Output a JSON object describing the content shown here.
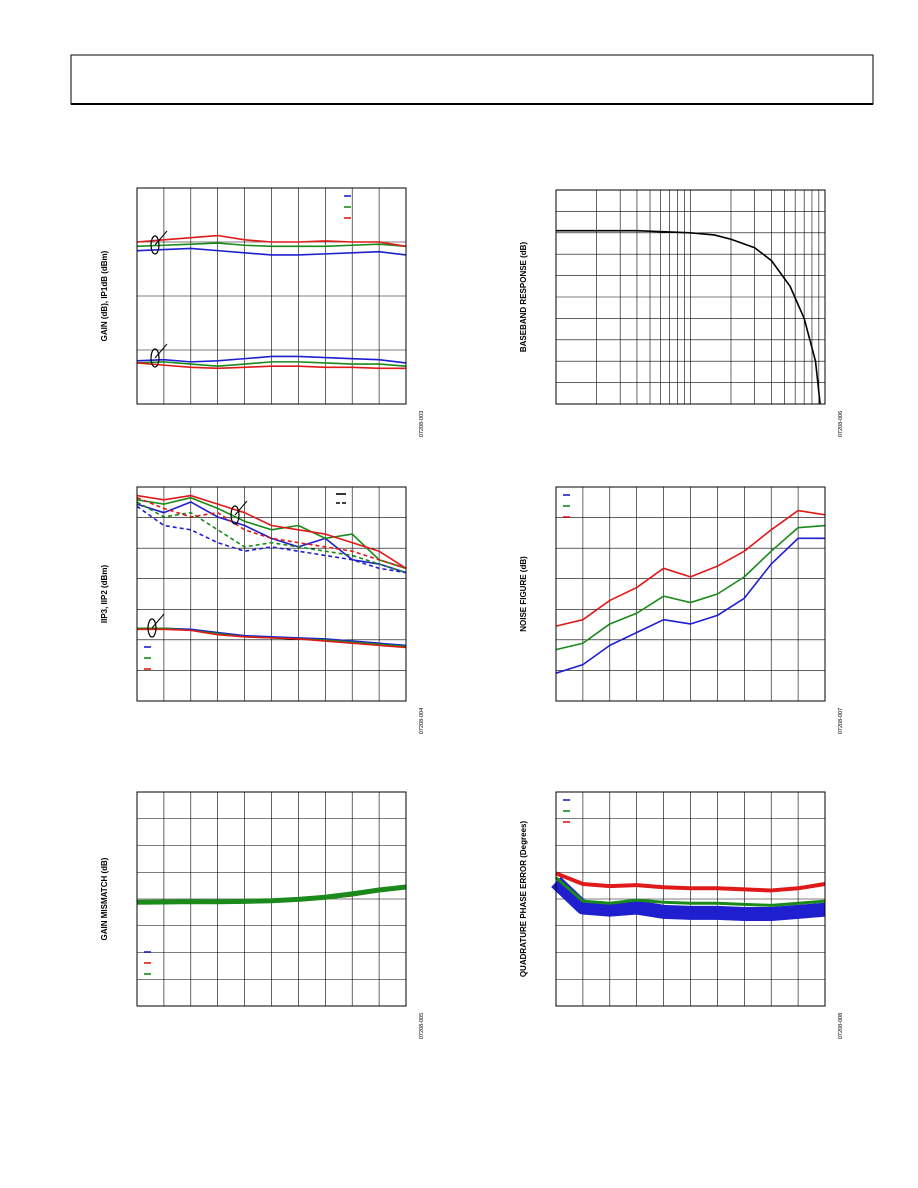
{
  "chart_data": [
    {
      "type": "line",
      "ylabel": "GAIN (dB), IP1dB (dBm)",
      "code": "07208-003",
      "grid": [
        10,
        4
      ],
      "legend": "upper right",
      "xlim": [
        0,
        100
      ],
      "ylim": [
        0,
        100
      ],
      "x": [
        0,
        10,
        20,
        30,
        40,
        50,
        60,
        70,
        80,
        90,
        100
      ],
      "series": [
        {
          "color": "#1f1fd0",
          "values": [
            71,
            71.5,
            72,
            71,
            70,
            69,
            69,
            69.5,
            70,
            70.5,
            69
          ]
        },
        {
          "color": "#1a8a1a",
          "values": [
            73,
            73.5,
            74,
            74.5,
            73.5,
            73,
            73,
            73,
            73.5,
            74,
            73
          ]
        },
        {
          "color": "#e01a1a",
          "values": [
            75,
            76,
            77,
            78,
            76,
            75,
            75,
            75.5,
            75,
            75,
            73
          ]
        },
        {
          "color": "#1f1fd0",
          "values": [
            20,
            20.5,
            19.5,
            20,
            21,
            22,
            22,
            21.5,
            21,
            20.5,
            19
          ]
        },
        {
          "color": "#1a8a1a",
          "values": [
            19,
            19.5,
            18.5,
            17.5,
            18.5,
            19.5,
            19.5,
            19,
            18.5,
            18.5,
            17.5
          ]
        },
        {
          "color": "#e01a1a",
          "values": [
            19,
            18,
            17,
            16.5,
            17,
            17.5,
            17.5,
            17,
            17,
            16.5,
            16.5
          ]
        }
      ]
    },
    {
      "type": "line",
      "ylabel": "BASEBAND RESPONSE (dB)",
      "code": "07208-006",
      "grid": [
        0,
        10
      ],
      "log_x": true,
      "xlim": [
        1,
        100
      ],
      "ylim": [
        0,
        100
      ],
      "x": [
        1,
        4,
        10,
        15,
        20,
        30,
        40,
        55,
        70,
        85,
        92
      ],
      "series": [
        {
          "color": "#000000",
          "values": [
            81,
            81,
            80,
            79,
            77,
            73,
            67,
            55,
            40,
            20,
            0
          ]
        }
      ]
    },
    {
      "type": "line",
      "ylabel": "IIP3, IIP2 (dBm)",
      "code": "07208-004",
      "grid": [
        10,
        7
      ],
      "legend": "lower left",
      "style_legend": "upper right",
      "xlim": [
        0,
        100
      ],
      "ylim": [
        0,
        100
      ],
      "x": [
        0,
        10,
        20,
        30,
        40,
        50,
        60,
        70,
        80,
        90,
        100
      ],
      "series": [
        {
          "color": "#1f1fd0",
          "values": [
            92,
            88,
            93,
            86,
            82,
            76,
            72,
            76,
            66,
            64,
            60
          ]
        },
        {
          "color": "#1a8a1a",
          "values": [
            94,
            92,
            95,
            90,
            84,
            80,
            82,
            76,
            78,
            66,
            62
          ]
        },
        {
          "color": "#e01a1a",
          "values": [
            96,
            94,
            96,
            92,
            88,
            82,
            80,
            78,
            74,
            70,
            62
          ]
        },
        {
          "color": "#1f1fd0",
          "dash": true,
          "values": [
            91,
            82,
            80,
            74,
            70,
            72,
            70,
            68,
            66,
            62,
            60
          ]
        },
        {
          "color": "#1a8a1a",
          "dash": true,
          "values": [
            93,
            86,
            88,
            80,
            72,
            74,
            72,
            70,
            68,
            64,
            60
          ]
        },
        {
          "color": "#e01a1a",
          "dash": true,
          "values": [
            95,
            90,
            86,
            88,
            80,
            76,
            74,
            72,
            70,
            66,
            62
          ]
        },
        {
          "color": "#1f1fd0",
          "values": [
            34,
            34,
            33.5,
            32,
            30.5,
            30,
            29.5,
            29,
            28,
            27,
            26
          ]
        },
        {
          "color": "#1a8a1a",
          "values": [
            34,
            34,
            33,
            31.5,
            30,
            29.5,
            29,
            28.5,
            27.5,
            26.5,
            25.5
          ]
        },
        {
          "color": "#e01a1a",
          "values": [
            33.5,
            33.5,
            33,
            31,
            30,
            29.5,
            29,
            28,
            27,
            26,
            25
          ]
        }
      ]
    },
    {
      "type": "line",
      "ylabel": "NOISE FIGURE (dB)",
      "code": "07208-007",
      "grid": [
        10,
        7
      ],
      "legend": "upper left",
      "xlim": [
        0,
        100
      ],
      "ylim": [
        0,
        100
      ],
      "x": [
        0,
        10,
        20,
        30,
        40,
        50,
        60,
        70,
        80,
        90,
        100
      ],
      "series": [
        {
          "color": "#1f1fd0",
          "values": [
            13,
            17,
            26,
            32,
            38,
            36,
            40,
            48,
            64,
            76,
            76
          ]
        },
        {
          "color": "#1a8a1a",
          "values": [
            24,
            27,
            36,
            41,
            49,
            46,
            50,
            58,
            70,
            81,
            82
          ]
        },
        {
          "color": "#e01a1a",
          "values": [
            35,
            38,
            47,
            53,
            62,
            58,
            63,
            70,
            80,
            89,
            87
          ]
        }
      ]
    },
    {
      "type": "line",
      "ylabel": "GAIN MISMATCH (dB)",
      "code": "07208-005",
      "grid": [
        10,
        8
      ],
      "legend": "lower left",
      "xlim": [
        0,
        100
      ],
      "ylim": [
        0,
        100
      ],
      "x": [
        0,
        10,
        20,
        30,
        40,
        50,
        60,
        70,
        80,
        90,
        100
      ],
      "series": [
        {
          "color": "#1f1fd0",
          "values": [
            48,
            48.5,
            48.3,
            48.5,
            48.6,
            48.8,
            49.5,
            50.5,
            52,
            54,
            55.5
          ]
        },
        {
          "color": "#e01a1a",
          "values": [
            48.3,
            48,
            48.5,
            48.2,
            48.4,
            48.6,
            49.2,
            50.2,
            51.5,
            53.5,
            55
          ]
        },
        {
          "color": "#1a8a1a",
          "width": 5,
          "values": [
            48.5,
            48.6,
            48.8,
            48.7,
            48.9,
            49.2,
            49.8,
            50.8,
            52.4,
            54.2,
            55.6
          ]
        }
      ]
    },
    {
      "type": "line",
      "ylabel": "QUADRATURE PHASE ERROR (Degrees)",
      "code": "07208-008",
      "grid": [
        10,
        8
      ],
      "legend": "upper left",
      "xlim": [
        0,
        100
      ],
      "ylim": [
        0,
        100
      ],
      "x": [
        0,
        10,
        20,
        30,
        40,
        50,
        60,
        70,
        80,
        90,
        100
      ],
      "series": [
        {
          "color": "#1f1fd0",
          "width": 14,
          "values": [
            58,
            46,
            45,
            46,
            44,
            43.5,
            43.5,
            43,
            43,
            44,
            45
          ]
        },
        {
          "color": "#1a8a1a",
          "width": 3,
          "values": [
            60,
            49,
            48,
            49.5,
            48.5,
            48,
            48,
            47.5,
            47,
            48,
            49
          ]
        },
        {
          "color": "#e01a1a",
          "width": 4,
          "values": [
            62,
            57,
            56,
            56.5,
            55.5,
            55,
            55,
            54.5,
            54,
            55,
            57
          ]
        }
      ]
    }
  ]
}
